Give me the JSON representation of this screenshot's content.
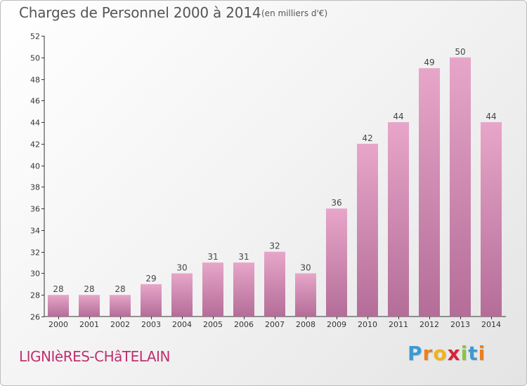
{
  "chart_data": {
    "type": "bar",
    "title": "Charges de Personnel 2000 à 2014",
    "subtitle": "(en milliers d'€)",
    "xlabel": "",
    "ylabel": "",
    "categories": [
      "2000",
      "2001",
      "2002",
      "2003",
      "2004",
      "2005",
      "2006",
      "2007",
      "2008",
      "2009",
      "2010",
      "2011",
      "2012",
      "2013",
      "2014"
    ],
    "values": [
      28,
      28,
      28,
      29,
      30,
      31,
      31,
      32,
      30,
      36,
      42,
      44,
      49,
      50,
      44
    ],
    "ylim": [
      26,
      52
    ],
    "yticks": [
      26,
      28,
      30,
      32,
      34,
      36,
      38,
      40,
      42,
      44,
      46,
      48,
      50,
      52
    ],
    "grid": false,
    "legend": "none",
    "bar_color": "#d98cb4"
  },
  "commune": "LIGNIèRES-CHâTELAIN",
  "logo": {
    "letters": [
      "P",
      "r",
      "o",
      "x",
      "i",
      "t",
      "i"
    ],
    "colors": [
      "#3d9ad1",
      "#e8811e",
      "#f2b21c",
      "#d9223a",
      "#8ac43f",
      "#3d9ad1",
      "#e8811e"
    ]
  }
}
